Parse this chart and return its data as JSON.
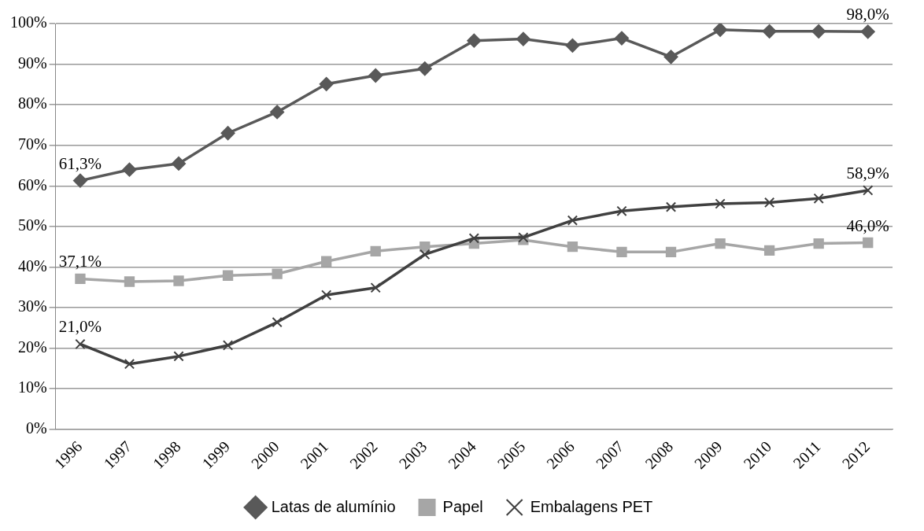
{
  "chart_data": {
    "type": "line",
    "categories": [
      "1996",
      "1997",
      "1998",
      "1999",
      "2000",
      "2001",
      "2002",
      "2003",
      "2004",
      "2005",
      "2006",
      "2007",
      "2008",
      "2009",
      "2010",
      "2011",
      "2012"
    ],
    "series": [
      {
        "name": "Latas de alumínio",
        "color": "#595959",
        "marker": "diamond",
        "values": [
          61.3,
          64.0,
          65.5,
          73.0,
          78.2,
          85.1,
          87.2,
          88.9,
          95.8,
          96.2,
          94.6,
          96.4,
          91.8,
          98.5,
          98.1,
          98.1,
          98.0
        ],
        "value_labels": [
          "61,3%",
          null,
          null,
          null,
          null,
          null,
          null,
          null,
          null,
          null,
          null,
          null,
          null,
          null,
          null,
          null,
          "98,0%"
        ]
      },
      {
        "name": "Papel",
        "color": "#a6a6a6",
        "marker": "square",
        "values": [
          37.1,
          36.4,
          36.6,
          37.9,
          38.3,
          41.4,
          43.9,
          45.0,
          45.8,
          46.7,
          45.0,
          43.7,
          43.7,
          45.8,
          44.1,
          45.8,
          46.0
        ],
        "value_labels": [
          "37,1%",
          null,
          null,
          null,
          null,
          null,
          null,
          null,
          null,
          null,
          null,
          null,
          null,
          null,
          null,
          null,
          "46,0%"
        ]
      },
      {
        "name": "Embalagens PET",
        "color": "#404040",
        "marker": "cross",
        "values": [
          21.0,
          16.1,
          18.0,
          20.7,
          26.4,
          33.1,
          34.9,
          43.1,
          47.1,
          47.3,
          51.5,
          53.8,
          54.8,
          55.6,
          55.9,
          56.9,
          58.9
        ],
        "value_labels": [
          "21,0%",
          null,
          null,
          null,
          null,
          null,
          null,
          null,
          null,
          null,
          null,
          null,
          null,
          null,
          null,
          null,
          "58,9%"
        ]
      }
    ],
    "ylim": [
      0,
      100
    ],
    "yticks": [
      {
        "value": 0,
        "label": "0%"
      },
      {
        "value": 10,
        "label": "10%"
      },
      {
        "value": 20,
        "label": "20%"
      },
      {
        "value": 30,
        "label": "30%"
      },
      {
        "value": 40,
        "label": "40%"
      },
      {
        "value": 50,
        "label": "50%"
      },
      {
        "value": 60,
        "label": "60%"
      },
      {
        "value": 70,
        "label": "70%"
      },
      {
        "value": 80,
        "label": "80%"
      },
      {
        "value": 90,
        "label": "90%"
      },
      {
        "value": 100,
        "label": "100%"
      }
    ],
    "grid": "y",
    "legend": "bottom"
  }
}
